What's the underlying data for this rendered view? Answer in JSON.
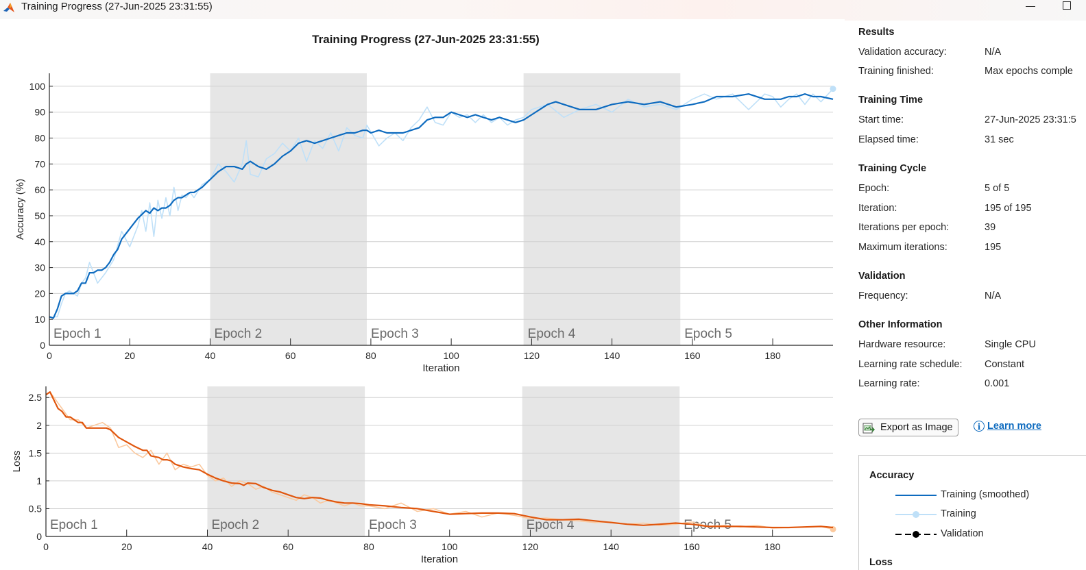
{
  "window": {
    "title": "Training Progress (27-Jun-2025 23:31:55)",
    "minimize_glyph": "—",
    "maximize_icon": "maximize-icon"
  },
  "chart_data": [
    {
      "type": "line",
      "title": "Training Progress (27-Jun-2025 23:31:55)",
      "xlabel": "Iteration",
      "ylabel": "Accuracy (%)",
      "xlim": [
        0,
        195
      ],
      "ylim": [
        0,
        105
      ],
      "xticks": [
        0,
        20,
        40,
        60,
        80,
        100,
        120,
        140,
        160,
        180
      ],
      "yticks": [
        0,
        10,
        20,
        30,
        40,
        50,
        60,
        70,
        80,
        90,
        100
      ],
      "grid": true,
      "epochs": [
        {
          "label": "Epoch 1",
          "start": 0,
          "end": 40,
          "shaded": false
        },
        {
          "label": "Epoch 2",
          "start": 40,
          "end": 79,
          "shaded": true
        },
        {
          "label": "Epoch 3",
          "start": 79,
          "end": 118,
          "shaded": false
        },
        {
          "label": "Epoch 4",
          "start": 118,
          "end": 157,
          "shaded": true
        },
        {
          "label": "Epoch 5",
          "start": 157,
          "end": 195,
          "shaded": false
        }
      ],
      "series": [
        {
          "name": "Training",
          "color": "#bfe0f8",
          "x": [
            1,
            2,
            3,
            4,
            5,
            6,
            7,
            8,
            9,
            10,
            12,
            14,
            16,
            18,
            20,
            22,
            23,
            24,
            25,
            26,
            27,
            28,
            29,
            30,
            31,
            32,
            33,
            34,
            35,
            36,
            38,
            40,
            42,
            44,
            46,
            48,
            49,
            50,
            52,
            54,
            56,
            58,
            60,
            62,
            64,
            66,
            68,
            70,
            72,
            74,
            76,
            78,
            79,
            82,
            84,
            86,
            88,
            90,
            92,
            94,
            96,
            98,
            100,
            102,
            104,
            106,
            108,
            110,
            112,
            114,
            116,
            118,
            120,
            124,
            128,
            132,
            136,
            140,
            144,
            148,
            152,
            156,
            160,
            163,
            166,
            170,
            174,
            178,
            180,
            182,
            184,
            186,
            188,
            190,
            192,
            195
          ],
          "y": [
            11,
            11,
            16,
            20,
            21,
            20,
            19,
            24,
            26,
            32,
            24,
            28,
            33,
            44,
            38,
            46,
            52,
            44,
            55,
            42,
            56,
            49,
            57,
            50,
            61,
            52,
            58,
            57,
            59,
            57,
            62,
            64,
            70,
            67,
            63,
            70,
            79,
            66,
            65,
            72,
            74,
            78,
            75,
            80,
            71,
            79,
            76,
            82,
            75,
            84,
            81,
            80,
            85,
            77,
            80,
            82,
            79,
            84,
            87,
            92,
            86,
            85,
            90,
            88,
            89,
            86,
            89,
            86,
            88,
            85,
            87,
            88,
            91,
            93,
            88,
            91,
            93,
            90,
            95,
            92,
            93,
            91,
            95,
            97,
            95,
            97,
            91,
            97,
            96,
            92,
            95,
            97,
            93,
            97,
            94,
            99
          ]
        },
        {
          "name": "Training (smoothed)",
          "color": "#0e6bbf",
          "x": [
            0,
            1,
            2,
            3,
            4,
            5,
            6,
            7,
            8,
            9,
            10,
            11,
            12,
            13,
            14,
            15,
            16,
            17,
            18,
            19,
            20,
            22,
            24,
            25,
            26,
            27,
            28,
            29,
            30,
            31,
            32,
            33,
            34,
            35,
            36,
            38,
            40,
            42,
            44,
            46,
            48,
            49,
            50,
            52,
            54,
            56,
            58,
            60,
            62,
            64,
            66,
            68,
            70,
            72,
            74,
            76,
            78,
            79,
            80,
            82,
            84,
            86,
            88,
            90,
            92,
            94,
            96,
            98,
            100,
            102,
            104,
            106,
            108,
            110,
            112,
            114,
            116,
            118,
            120,
            122,
            124,
            126,
            128,
            130,
            132,
            134,
            136,
            138,
            140,
            144,
            148,
            152,
            156,
            160,
            163,
            166,
            170,
            174,
            178,
            180,
            182,
            184,
            186,
            188,
            190,
            192,
            195
          ],
          "y": [
            11,
            10.5,
            14,
            19,
            20,
            20,
            20,
            21,
            24,
            24,
            28,
            28,
            29,
            29,
            30,
            32,
            35,
            37,
            41,
            43,
            45,
            49,
            52,
            51,
            53,
            52,
            53,
            53,
            54,
            56,
            57,
            57,
            58,
            59,
            59,
            61,
            64,
            67,
            69,
            69,
            68,
            70,
            71,
            69,
            68,
            70,
            73,
            75,
            78,
            79,
            78,
            79,
            80,
            81,
            82,
            82,
            83,
            83,
            82,
            83,
            82,
            82,
            82,
            83,
            84,
            87,
            88,
            88,
            90,
            89,
            88,
            89,
            88,
            87,
            88,
            87,
            86,
            87,
            89,
            91,
            93,
            94,
            93,
            92,
            91,
            91,
            91,
            92,
            93,
            94,
            93,
            94,
            92,
            93,
            94,
            96,
            96,
            97,
            95,
            95,
            95,
            96,
            96,
            97,
            96,
            96,
            95
          ],
          "end_marker": false
        }
      ]
    },
    {
      "type": "line",
      "xlabel": "Iteration",
      "ylabel": "Loss",
      "xlim": [
        0,
        195
      ],
      "ylim": [
        0,
        2.7
      ],
      "xticks": [
        0,
        20,
        40,
        60,
        80,
        100,
        120,
        140,
        160,
        180
      ],
      "yticks": [
        0,
        0.5,
        1,
        1.5,
        2,
        2.5
      ],
      "ytick_labels": [
        "0",
        "0.5",
        "1",
        "1.5",
        "2",
        "2.5"
      ],
      "grid": true,
      "epochs": [
        {
          "label": "Epoch 1",
          "start": 0,
          "end": 40,
          "shaded": false
        },
        {
          "label": "Epoch 2",
          "start": 40,
          "end": 79,
          "shaded": true
        },
        {
          "label": "Epoch 3",
          "start": 79,
          "end": 118,
          "shaded": false
        },
        {
          "label": "Epoch 4",
          "start": 118,
          "end": 157,
          "shaded": true
        },
        {
          "label": "Epoch 5",
          "start": 157,
          "end": 195,
          "shaded": false
        }
      ],
      "series": [
        {
          "name": "Training",
          "color": "#fbc99e",
          "x": [
            1,
            2,
            4,
            6,
            8,
            10,
            12,
            14,
            16,
            18,
            20,
            22,
            24,
            26,
            28,
            30,
            32,
            34,
            36,
            38,
            40,
            42,
            44,
            46,
            48,
            50,
            52,
            54,
            56,
            58,
            60,
            62,
            64,
            66,
            68,
            70,
            72,
            74,
            76,
            78,
            80,
            84,
            88,
            92,
            96,
            100,
            104,
            108,
            112,
            116,
            120,
            124,
            128,
            132,
            136,
            140,
            144,
            148,
            152,
            156,
            160,
            164,
            168,
            172,
            176,
            180,
            184,
            188,
            192,
            195
          ],
          "y": [
            2.6,
            2.5,
            2.3,
            2.1,
            2.1,
            1.95,
            2.0,
            2.05,
            1.95,
            1.6,
            1.65,
            1.5,
            1.42,
            1.55,
            1.3,
            1.5,
            1.2,
            1.3,
            1.25,
            1.3,
            1.1,
            1.0,
            1.05,
            0.9,
            1.0,
            0.95,
            0.85,
            0.9,
            0.8,
            0.75,
            0.7,
            0.65,
            0.75,
            0.7,
            0.6,
            0.65,
            0.6,
            0.55,
            0.6,
            0.55,
            0.55,
            0.5,
            0.6,
            0.45,
            0.5,
            0.4,
            0.45,
            0.35,
            0.42,
            0.38,
            0.32,
            0.33,
            0.3,
            0.28,
            0.25,
            0.26,
            0.22,
            0.24,
            0.2,
            0.22,
            0.26,
            0.18,
            0.2,
            0.17,
            0.2,
            0.15,
            0.16,
            0.17,
            0.18,
            0.13
          ]
        },
        {
          "name": "Training (smoothed)",
          "color": "#e0560d",
          "x": [
            0,
            1,
            2,
            3,
            4,
            5,
            6,
            7,
            8,
            9,
            10,
            12,
            14,
            15,
            16,
            17,
            18,
            20,
            22,
            24,
            25,
            26,
            28,
            29,
            30,
            31,
            32,
            34,
            36,
            38,
            40,
            42,
            44,
            46,
            48,
            49,
            50,
            52,
            54,
            56,
            58,
            60,
            62,
            64,
            66,
            68,
            70,
            72,
            74,
            76,
            78,
            80,
            84,
            88,
            92,
            96,
            100,
            104,
            108,
            112,
            116,
            120,
            124,
            128,
            132,
            136,
            140,
            144,
            148,
            152,
            156,
            160,
            164,
            168,
            172,
            176,
            180,
            184,
            188,
            192,
            195
          ],
          "y": [
            2.55,
            2.6,
            2.45,
            2.3,
            2.25,
            2.15,
            2.15,
            2.1,
            2.05,
            2.05,
            1.95,
            1.95,
            1.95,
            1.95,
            1.92,
            1.85,
            1.78,
            1.7,
            1.62,
            1.55,
            1.55,
            1.45,
            1.42,
            1.38,
            1.38,
            1.36,
            1.3,
            1.25,
            1.22,
            1.2,
            1.12,
            1.05,
            1.0,
            0.96,
            0.95,
            0.92,
            0.96,
            0.95,
            0.88,
            0.83,
            0.8,
            0.75,
            0.7,
            0.68,
            0.7,
            0.69,
            0.65,
            0.62,
            0.6,
            0.6,
            0.59,
            0.57,
            0.55,
            0.52,
            0.5,
            0.45,
            0.4,
            0.41,
            0.42,
            0.42,
            0.41,
            0.35,
            0.3,
            0.3,
            0.31,
            0.28,
            0.25,
            0.22,
            0.2,
            0.22,
            0.24,
            0.22,
            0.18,
            0.18,
            0.18,
            0.17,
            0.16,
            0.16,
            0.17,
            0.18,
            0.16
          ],
          "end_marker": true
        }
      ]
    }
  ],
  "info": {
    "results": {
      "heading": "Results",
      "rows": [
        {
          "label": "Validation accuracy:",
          "value": "N/A"
        },
        {
          "label": "Training finished:",
          "value": "Max epochs comple"
        }
      ]
    },
    "time": {
      "heading": "Training Time",
      "rows": [
        {
          "label": "Start time:",
          "value": "27-Jun-2025 23:31:5"
        },
        {
          "label": "Elapsed time:",
          "value": "31 sec"
        }
      ]
    },
    "cycle": {
      "heading": "Training Cycle",
      "rows": [
        {
          "label": "Epoch:",
          "value": "5 of 5"
        },
        {
          "label": "Iteration:",
          "value": "195 of 195"
        },
        {
          "label": "Iterations per epoch:",
          "value": "39"
        },
        {
          "label": "Maximum iterations:",
          "value": "195"
        }
      ]
    },
    "validation": {
      "heading": "Validation",
      "rows": [
        {
          "label": "Frequency:",
          "value": "N/A"
        }
      ]
    },
    "other": {
      "heading": "Other Information",
      "rows": [
        {
          "label": "Hardware resource:",
          "value": "Single CPU"
        },
        {
          "label": "Learning rate schedule:",
          "value": "Constant"
        },
        {
          "label": "Learning rate:",
          "value": "0.001"
        }
      ]
    },
    "export_label": "Export as Image",
    "learn_more_label": "Learn more",
    "info_glyph": "i"
  },
  "legend": {
    "accuracy_heading": "Accuracy",
    "loss_heading": "Loss",
    "entries": [
      {
        "label": "Training (smoothed)",
        "color": "#0e6bbf",
        "style": "solid"
      },
      {
        "label": "Training",
        "color": "#bfe0f8",
        "style": "marker"
      },
      {
        "label": "Validation",
        "color": "#000000",
        "style": "dashed-marker"
      }
    ]
  }
}
